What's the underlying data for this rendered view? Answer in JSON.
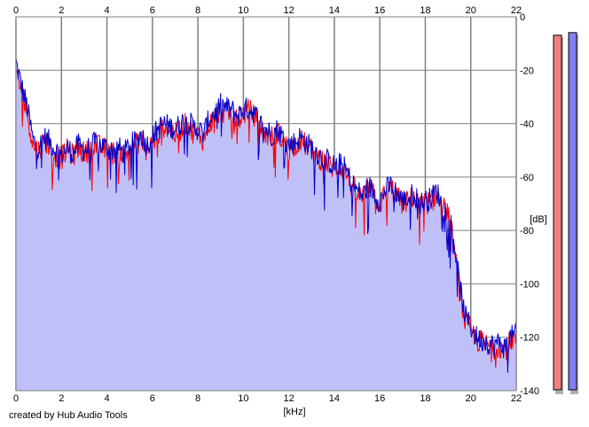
{
  "credit": "created by Hub Audio Tools",
  "colors": {
    "background": "#ffffff",
    "fill": "#c0c0f8",
    "grid": "#808080",
    "left_channel": "#ff0000",
    "right_channel": "#0000cc",
    "meter_left": "#f08080",
    "meter_right": "#8080f0",
    "meter_shadow": "#b0b0b0"
  },
  "chart_data": {
    "type": "line",
    "title": "",
    "xlabel": "[kHz]",
    "ylabel": "[dB]",
    "xlim": [
      0,
      22
    ],
    "ylim": [
      -140,
      0
    ],
    "x_ticks": [
      "0",
      "2",
      "4",
      "6",
      "8",
      "10",
      "12",
      "14",
      "16",
      "18",
      "20",
      "22"
    ],
    "y_ticks": [
      "0",
      "-20",
      "-40",
      "-60",
      "-80",
      "-100",
      "-120",
      "-140"
    ],
    "grid": true,
    "x_step_khz": 0.25,
    "series": [
      {
        "color": "#ff0000",
        "values": [
          -20,
          -28,
          -36,
          -48,
          -50,
          -46,
          -49,
          -52,
          -53,
          -50,
          -52,
          -49,
          -51,
          -50,
          -48,
          -49,
          -50,
          -51,
          -50,
          -52,
          -49,
          -48,
          -46,
          -50,
          -47,
          -44,
          -41,
          -42,
          -44,
          -42,
          -40,
          -43,
          -44,
          -46,
          -40,
          -38,
          -35,
          -36,
          -37,
          -39,
          -36,
          -35,
          -37,
          -42,
          -44,
          -45,
          -43,
          -47,
          -50,
          -48,
          -46,
          -48,
          -50,
          -52,
          -54,
          -55,
          -57,
          -56,
          -58,
          -63,
          -66,
          -68,
          -64,
          -67,
          -70,
          -66,
          -64,
          -67,
          -70,
          -69,
          -67,
          -71,
          -70,
          -69,
          -66,
          -72,
          -73,
          -85,
          -102,
          -114,
          -117,
          -121,
          -122,
          -123,
          -124,
          -123,
          -125,
          -121,
          -120,
          -122
        ]
      },
      {
        "color": "#0000cc",
        "values": [
          -17,
          -26,
          -34,
          -46,
          -49,
          -45,
          -47,
          -50,
          -52,
          -49,
          -51,
          -48,
          -50,
          -49,
          -47,
          -48,
          -49,
          -50,
          -49,
          -51,
          -48,
          -47,
          -44,
          -48,
          -45,
          -42,
          -40,
          -41,
          -42,
          -40,
          -38,
          -41,
          -42,
          -44,
          -38,
          -36,
          -33,
          -34,
          -35,
          -37,
          -35,
          -34,
          -36,
          -40,
          -42,
          -44,
          -42,
          -45,
          -48,
          -47,
          -45,
          -47,
          -49,
          -51,
          -53,
          -54,
          -56,
          -55,
          -57,
          -62,
          -65,
          -67,
          -63,
          -66,
          -69,
          -65,
          -63,
          -66,
          -69,
          -68,
          -66,
          -70,
          -69,
          -68,
          -65,
          -71,
          -72,
          -83,
          -100,
          -112,
          -116,
          -120,
          -121,
          -122,
          -123,
          -122,
          -124,
          -120,
          -119,
          -121
        ]
      }
    ]
  },
  "level_meters": {
    "left_db": -4,
    "right_db": -3
  }
}
